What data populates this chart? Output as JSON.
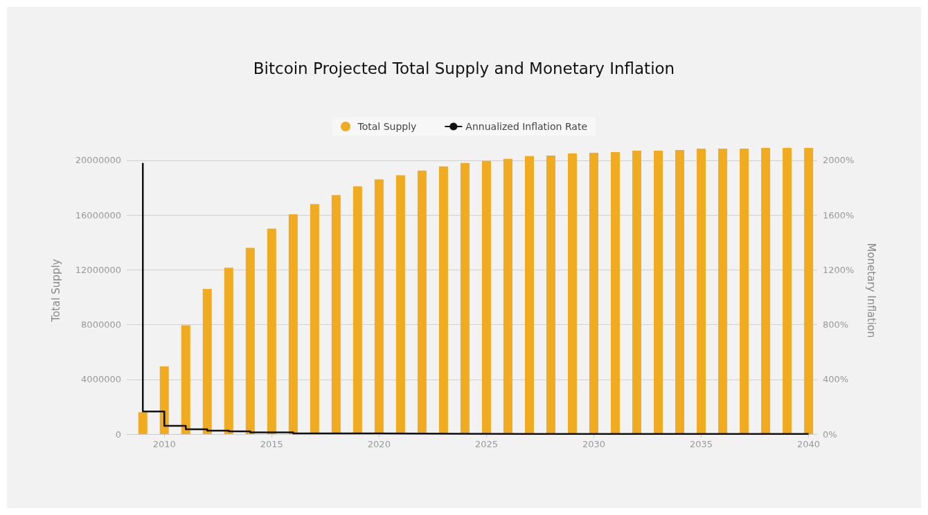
{
  "chart_data": {
    "type": "bar",
    "title": "Bitcoin Projected Total Supply and Monetary Inflation",
    "series": [
      {
        "name": "Total Supply",
        "color": "#f0ab21",
        "x": [
          2009,
          2010,
          2011,
          2012,
          2013,
          2014,
          2015,
          2016,
          2017,
          2018,
          2019,
          2020,
          2021,
          2022,
          2023,
          2024,
          2025,
          2026,
          2027,
          2028,
          2029,
          2030,
          2031,
          2032,
          2033,
          2034,
          2035,
          2036,
          2037,
          2038,
          2039,
          2040
        ],
        "values": [
          1600000,
          4950000,
          7950000,
          10600000,
          12150000,
          13600000,
          15000000,
          16050000,
          16800000,
          17450000,
          18100000,
          18600000,
          18900000,
          19250000,
          19550000,
          19800000,
          19950000,
          20100000,
          20300000,
          20350000,
          20500000,
          20550000,
          20600000,
          20700000,
          20700000,
          20750000,
          20850000,
          20850000,
          20850000,
          20900000,
          20900000,
          20900000
        ]
      },
      {
        "name": "Annualized Inflation Rate",
        "type": "step",
        "axis": "y2",
        "color": "#111111",
        "x": [
          2009,
          2009,
          2010,
          2011,
          2012,
          2013,
          2014,
          2016,
          2020,
          2024,
          2040
        ],
        "values": [
          1980,
          165,
          60,
          35,
          25,
          20,
          13,
          5,
          2,
          1,
          0
        ]
      }
    ],
    "xlim": [
      2008.25,
      2040.4
    ],
    "xticks": [
      2010,
      2015,
      2020,
      2025,
      2030,
      2035,
      2040
    ],
    "ylim": [
      0,
      21000000
    ],
    "yticks": [
      0,
      4000000,
      8000000,
      12000000,
      16000000,
      20000000
    ],
    "y2lim": [
      0,
      2100
    ],
    "y2ticks": [
      {
        "value": 0,
        "label": "0%"
      },
      {
        "value": 400,
        "label": "400%"
      },
      {
        "value": 800,
        "label": "800%"
      },
      {
        "value": 1200,
        "label": "1200%"
      },
      {
        "value": 1600,
        "label": "1600%"
      },
      {
        "value": 2000,
        "label": "2000%"
      }
    ],
    "ylabel": "Total Supply",
    "y2label": "Monetary Inflation",
    "grid": "y",
    "legend": "top",
    "marker": "none"
  }
}
